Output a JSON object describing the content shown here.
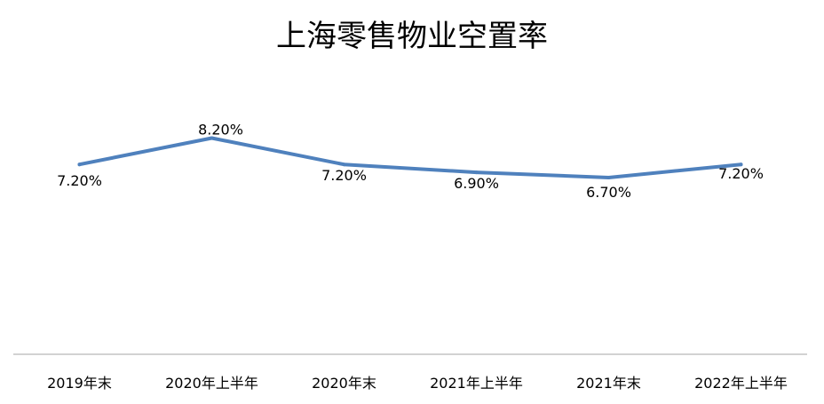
{
  "chart_data": {
    "type": "line",
    "title": "上海零售物业空置率",
    "categories": [
      "2019年末",
      "2020年上半年",
      "2020年末",
      "2021年上半年",
      "2021年末",
      "2022年上半年"
    ],
    "series": [
      {
        "values": [
          7.2,
          8.2,
          7.2,
          6.9,
          6.7,
          7.2
        ],
        "data_labels": [
          "7.20%",
          "8.20%",
          "7.20%",
          "6.90%",
          "6.70%",
          "7.20%"
        ],
        "color": "#4f81bd"
      }
    ],
    "ylim": [
      0,
      10
    ],
    "grid": false,
    "legend": "none",
    "axis_color": "#a6a6a6"
  }
}
